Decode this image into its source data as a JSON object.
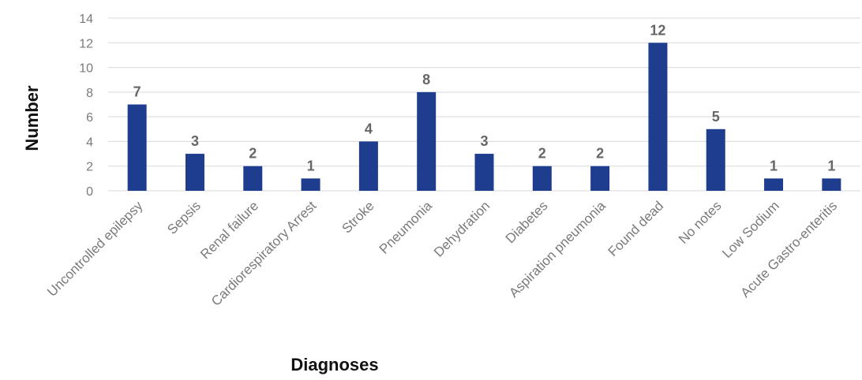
{
  "chart_data": {
    "type": "bar",
    "title": "",
    "xlabel": "Diagnoses",
    "ylabel": "Number",
    "ylim": [
      0,
      14
    ],
    "yticks": [
      0,
      2,
      4,
      6,
      8,
      10,
      12,
      14
    ],
    "grid": true,
    "legend": "none",
    "bar_color": "#1f3d8f",
    "categories": [
      "Uncontrolled epilepsy",
      "Sepsis",
      "Renal failure",
      "Cardiorespiratory Arrest",
      "Stroke",
      "Pneumonia",
      "Dehydration",
      "Diabetes",
      "Aspiration pneumonia",
      "Found dead",
      "No notes",
      "Low Sodium",
      "Acute Gastro-enteritis"
    ],
    "values": [
      7,
      3,
      2,
      1,
      4,
      8,
      3,
      2,
      2,
      12,
      5,
      1,
      1
    ]
  }
}
